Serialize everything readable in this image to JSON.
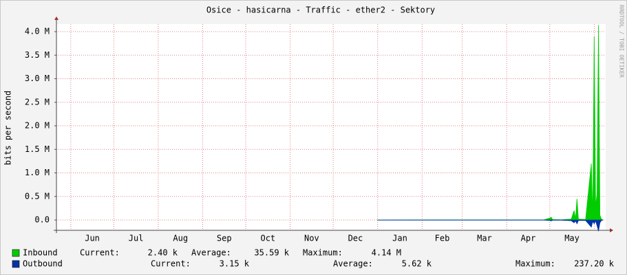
{
  "chart_data": {
    "type": "area",
    "title": "Osice - hasicarna - Traffic - ether2 - Sektory",
    "ylabel": "bits per second",
    "side_text": "RRDTOOL / TOBI OETIKER",
    "xlim": [
      0,
      383
    ],
    "xticks": [
      {
        "value": 25,
        "label": "Jun"
      },
      {
        "value": 55.5,
        "label": "Jul"
      },
      {
        "value": 86.5,
        "label": "Aug"
      },
      {
        "value": 117,
        "label": "Sep"
      },
      {
        "value": 147.5,
        "label": "Oct"
      },
      {
        "value": 178,
        "label": "Nov"
      },
      {
        "value": 208.5,
        "label": "Dec"
      },
      {
        "value": 239.5,
        "label": "Jan"
      },
      {
        "value": 269,
        "label": "Feb"
      },
      {
        "value": 298.5,
        "label": "Mar"
      },
      {
        "value": 329,
        "label": "Apr"
      },
      {
        "value": 359.5,
        "label": "May"
      }
    ],
    "xgrid": [
      10,
      40,
      71,
      102,
      132,
      163,
      193,
      224,
      255,
      283,
      314,
      344,
      375
    ],
    "ylim": [
      -219000,
      4161000
    ],
    "yticks": [
      {
        "value": 0,
        "label": "0.0"
      },
      {
        "value": 500000,
        "label": "0.5 M"
      },
      {
        "value": 1000000,
        "label": "1.0 M"
      },
      {
        "value": 1500000,
        "label": "1.5 M"
      },
      {
        "value": 2000000,
        "label": "2.0 M"
      },
      {
        "value": 2500000,
        "label": "2.5 M"
      },
      {
        "value": 3000000,
        "label": "3.0 M"
      },
      {
        "value": 3500000,
        "label": "3.5 M"
      },
      {
        "value": 4000000,
        "label": "4.0 M"
      }
    ],
    "grid": true,
    "x": [
      224,
      330,
      340,
      344,
      345,
      346,
      352,
      359,
      361,
      362,
      363,
      364,
      369,
      373,
      374,
      375,
      376,
      377,
      378,
      379,
      380,
      381
    ],
    "series": [
      {
        "name": "Inbound",
        "color": "#00cc00",
        "values": [
          2000,
          3000,
          5000,
          40000,
          60000,
          10000,
          5000,
          20000,
          200000,
          30000,
          450000,
          20000,
          10000,
          1200000,
          50000,
          3900000,
          300000,
          550000,
          4140000,
          100000,
          20000,
          2400
        ],
        "stats": [
          {
            "label": "Current:",
            "value": "2.40 k"
          },
          {
            "label": "Average:",
            "value": "35.59 k"
          },
          {
            "label": "Maximum:",
            "value": "4.14 M"
          }
        ]
      },
      {
        "name": "Outbound",
        "color": "#0033aa",
        "values": [
          -3000,
          -3000,
          -4000,
          -10000,
          -20000,
          -5000,
          -5000,
          -15000,
          -60000,
          -20000,
          -80000,
          -10000,
          -10000,
          -150000,
          -30000,
          -80000,
          -20000,
          -120000,
          -237200,
          -60000,
          -10000,
          -3150
        ],
        "stats": [
          {
            "label": "Current:",
            "value": "3.15 k"
          },
          {
            "label": "Average:",
            "value": "5.62 k"
          },
          {
            "label": "Maximum:",
            "value": "237.20 k"
          }
        ]
      }
    ]
  }
}
